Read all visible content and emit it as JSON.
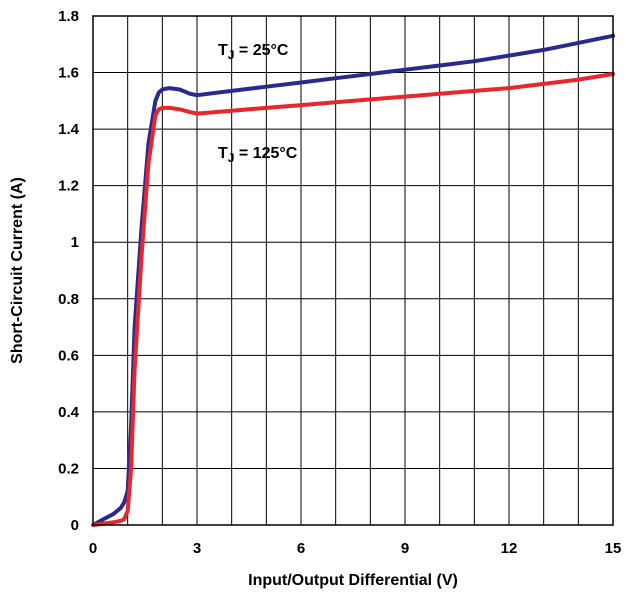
{
  "chart_data": {
    "type": "line",
    "xlabel": "Input/Output Differential (V)",
    "ylabel": "Short-Circuit Current (A)",
    "xlim": [
      0,
      15
    ],
    "ylim": [
      0,
      1.8
    ],
    "grid": true,
    "x_ticks": [
      0,
      3,
      6,
      9,
      12,
      15
    ],
    "x_tick_labels": [
      "0",
      "3",
      "6",
      "9",
      "12",
      "15"
    ],
    "y_ticks": [
      0,
      0.2,
      0.4,
      0.6,
      0.8,
      1.0,
      1.2,
      1.4,
      1.6,
      1.8
    ],
    "y_tick_labels": [
      "0",
      "0.2",
      "0.4",
      "0.6",
      "0.8",
      "1",
      "1.2",
      "1.4",
      "1.6",
      "1.8"
    ],
    "series": [
      {
        "label_main": "T",
        "label_sub": "J",
        "label_rest": " = 25°C",
        "color": "#2a2a8e",
        "x": [
          0,
          0.3,
          0.6,
          0.8,
          0.9,
          1.0,
          1.1,
          1.2,
          1.4,
          1.6,
          1.8,
          1.9,
          2.0,
          2.2,
          2.5,
          2.8,
          3.0,
          4,
          5,
          6,
          7,
          8,
          9,
          10,
          11,
          12,
          13,
          14,
          15
        ],
        "y": [
          0,
          0.02,
          0.04,
          0.06,
          0.08,
          0.12,
          0.35,
          0.7,
          1.05,
          1.35,
          1.5,
          1.53,
          1.54,
          1.545,
          1.54,
          1.525,
          1.52,
          1.535,
          1.55,
          1.565,
          1.58,
          1.595,
          1.61,
          1.625,
          1.64,
          1.66,
          1.68,
          1.705,
          1.73
        ]
      },
      {
        "label_main": "T",
        "label_sub": "J",
        "label_rest": " = 125°C",
        "color": "#e8262c",
        "x": [
          0,
          0.3,
          0.6,
          0.8,
          0.9,
          1.0,
          1.1,
          1.2,
          1.4,
          1.6,
          1.8,
          1.9,
          2.0,
          2.2,
          2.5,
          2.8,
          3.0,
          4,
          5,
          6,
          7,
          8,
          9,
          10,
          11,
          12,
          13,
          14,
          15
        ],
        "y": [
          0,
          0.005,
          0.01,
          0.015,
          0.02,
          0.05,
          0.2,
          0.55,
          0.95,
          1.28,
          1.45,
          1.47,
          1.475,
          1.475,
          1.47,
          1.46,
          1.455,
          1.465,
          1.475,
          1.485,
          1.495,
          1.505,
          1.515,
          1.525,
          1.535,
          1.545,
          1.56,
          1.575,
          1.595
        ]
      }
    ]
  }
}
